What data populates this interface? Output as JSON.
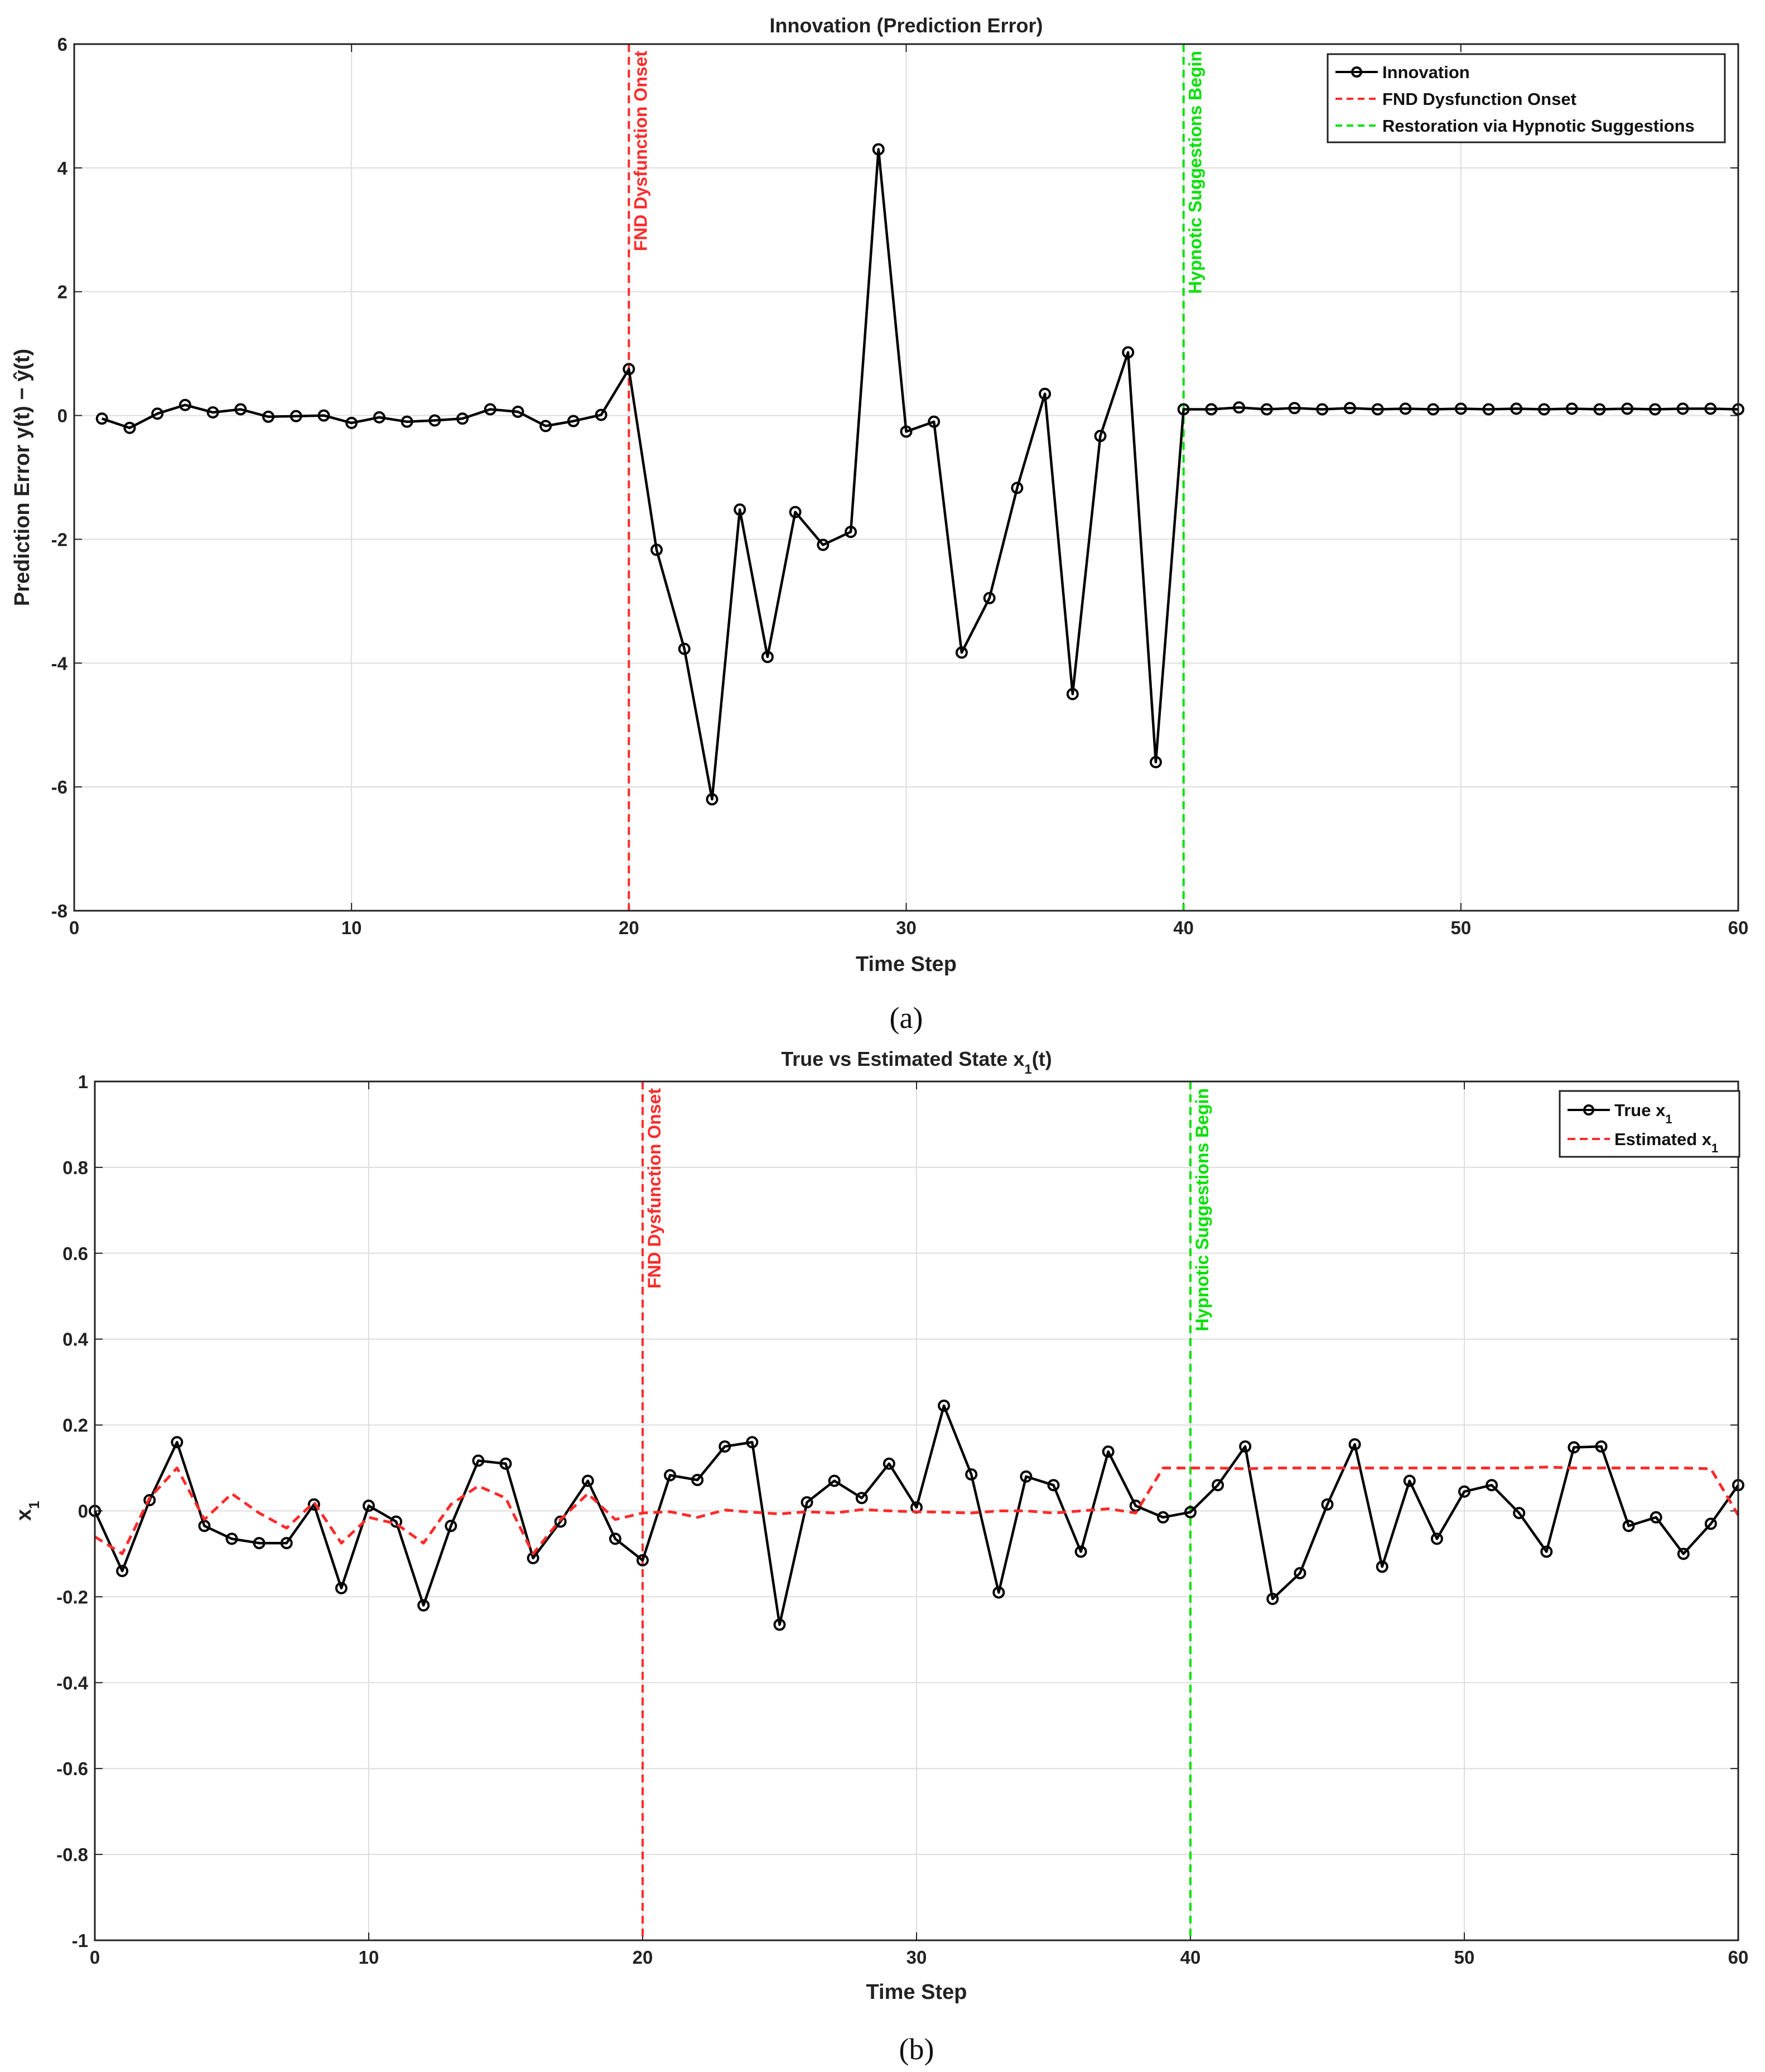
{
  "colors": {
    "series": "#000000",
    "onset": "#ff2a2a",
    "restoration": "#00e000",
    "estimate": "#ff2a2a",
    "grid": "#dddddd"
  },
  "chart_data": [
    {
      "id": "a",
      "type": "line",
      "title": "Innovation (Prediction Error)",
      "xlabel": "Time Step",
      "ylabel": "Prediction Error y(t) − ŷ(t)",
      "caption": "(a)",
      "xlim": [
        0,
        60
      ],
      "ylim": [
        -8,
        6
      ],
      "xticks": [
        0,
        10,
        20,
        30,
        40,
        50,
        60
      ],
      "yticks": [
        -8,
        -6,
        -4,
        -2,
        0,
        2,
        4,
        6
      ],
      "grid": true,
      "legend_position": "top-right",
      "legend": [
        "Innovation",
        "FND Dysfunction Onset",
        "Restoration via Hypnotic Suggestions"
      ],
      "vlines": [
        {
          "x": 20,
          "label": "FND Dysfunction Onset",
          "color": "#ff2a2a"
        },
        {
          "x": 40,
          "label": "Hypnotic Suggestions Begin",
          "color": "#00e000"
        }
      ],
      "series": [
        {
          "name": "Innovation",
          "marker": "circle",
          "style": "solid",
          "x": [
            1,
            2,
            3,
            4,
            5,
            6,
            7,
            8,
            9,
            10,
            11,
            12,
            13,
            14,
            15,
            16,
            17,
            18,
            19,
            20,
            21,
            22,
            23,
            24,
            25,
            26,
            27,
            28,
            29,
            30,
            31,
            32,
            33,
            34,
            35,
            36,
            37,
            38,
            39,
            40,
            41,
            42,
            43,
            44,
            45,
            46,
            47,
            48,
            49,
            50,
            51,
            52,
            53,
            54,
            55,
            56,
            57,
            58,
            59,
            60
          ],
          "y": [
            -0.05,
            -0.2,
            0.03,
            0.17,
            0.05,
            0.1,
            -0.02,
            -0.01,
            0.0,
            -0.12,
            -0.03,
            -0.1,
            -0.08,
            -0.05,
            0.1,
            0.06,
            -0.17,
            -0.09,
            0.01,
            0.75,
            -2.17,
            -3.77,
            -6.2,
            -1.52,
            -3.9,
            -1.56,
            -2.09,
            -1.88,
            4.3,
            -0.26,
            -0.1,
            -3.83,
            -2.95,
            -1.17,
            0.35,
            -4.5,
            -0.33,
            1.02,
            -5.6,
            0.1,
            0.1,
            0.13,
            0.1,
            0.12,
            0.1,
            0.12,
            0.1,
            0.11,
            0.1,
            0.11,
            0.1,
            0.11,
            0.1,
            0.11,
            0.1,
            0.11,
            0.1,
            0.11,
            0.11,
            0.1
          ]
        }
      ]
    },
    {
      "id": "b",
      "type": "line",
      "title": "True vs Estimated State x1(t)",
      "xlabel": "Time Step",
      "ylabel": "x1",
      "caption": "(b)",
      "xlim": [
        0,
        60
      ],
      "ylim": [
        -1,
        1
      ],
      "xticks": [
        0,
        10,
        20,
        30,
        40,
        50,
        60
      ],
      "yticks": [
        -1,
        -0.8,
        -0.6,
        -0.4,
        -0.2,
        0,
        0.2,
        0.4,
        0.6,
        0.8,
        1
      ],
      "grid": true,
      "legend_position": "top-right",
      "legend": [
        "True x1",
        "Estimated x1"
      ],
      "vlines": [
        {
          "x": 20,
          "label": "FND Dysfunction Onset",
          "color": "#ff2a2a"
        },
        {
          "x": 40,
          "label": "Hypnotic Suggestions Begin",
          "color": "#00e000"
        }
      ],
      "series": [
        {
          "name": "True x1",
          "marker": "circle",
          "style": "solid",
          "x": [
            0,
            1,
            2,
            3,
            4,
            5,
            6,
            7,
            8,
            9,
            10,
            11,
            12,
            13,
            14,
            15,
            16,
            17,
            18,
            19,
            20,
            21,
            22,
            23,
            24,
            25,
            26,
            27,
            28,
            29,
            30,
            31,
            32,
            33,
            34,
            35,
            36,
            37,
            38,
            39,
            40,
            41,
            42,
            43,
            44,
            45,
            46,
            47,
            48,
            49,
            50,
            51,
            52,
            53,
            54,
            55,
            56,
            57,
            58,
            59,
            60
          ],
          "y": [
            0.0,
            -0.14,
            0.025,
            0.16,
            -0.035,
            -0.065,
            -0.075,
            -0.075,
            0.015,
            -0.18,
            0.012,
            -0.025,
            -0.22,
            -0.035,
            0.117,
            0.11,
            -0.11,
            -0.025,
            0.07,
            -0.065,
            -0.115,
            0.083,
            0.072,
            0.15,
            0.16,
            -0.265,
            0.02,
            0.07,
            0.03,
            0.11,
            0.008,
            0.245,
            0.085,
            -0.19,
            0.08,
            0.06,
            -0.095,
            0.138,
            0.012,
            -0.015,
            -0.003,
            0.06,
            0.15,
            -0.205,
            -0.145,
            0.015,
            0.155,
            -0.13,
            0.07,
            -0.065,
            0.045,
            0.06,
            -0.005,
            -0.095,
            0.148,
            0.15,
            -0.035,
            -0.015,
            -0.1,
            -0.03,
            0.06
          ]
        },
        {
          "name": "Estimated x1",
          "marker": "none",
          "style": "dashed",
          "x": [
            0,
            1,
            2,
            3,
            4,
            5,
            6,
            7,
            8,
            9,
            10,
            11,
            12,
            13,
            14,
            15,
            16,
            17,
            18,
            19,
            20,
            21,
            22,
            23,
            24,
            25,
            26,
            27,
            28,
            29,
            30,
            31,
            32,
            33,
            34,
            35,
            36,
            37,
            38,
            39,
            40,
            41,
            42,
            43,
            44,
            45,
            46,
            47,
            48,
            49,
            50,
            51,
            52,
            53,
            54,
            55,
            56,
            57,
            58,
            59,
            60
          ],
          "y": [
            -0.06,
            -0.1,
            0.03,
            0.1,
            -0.02,
            0.04,
            -0.005,
            -0.04,
            0.02,
            -0.075,
            -0.015,
            -0.03,
            -0.075,
            0.015,
            0.058,
            0.03,
            -0.1,
            -0.02,
            0.04,
            -0.02,
            -0.005,
            -0.002,
            -0.015,
            0.002,
            -0.003,
            -0.007,
            -0.002,
            -0.005,
            0.003,
            0.0,
            -0.002,
            -0.003,
            -0.005,
            0.0,
            0.0,
            -0.005,
            0.0,
            0.005,
            -0.005,
            0.1,
            0.1,
            0.1,
            0.098,
            0.1,
            0.1,
            0.1,
            0.1,
            0.1,
            0.1,
            0.1,
            0.1,
            0.1,
            0.1,
            0.102,
            0.1,
            0.1,
            0.1,
            0.1,
            0.1,
            0.098,
            -0.01
          ]
        }
      ]
    }
  ]
}
